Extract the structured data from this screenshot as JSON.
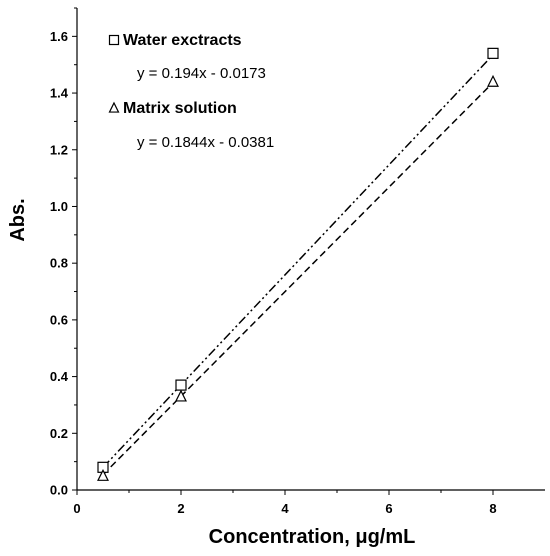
{
  "chart_data": {
    "type": "scatter",
    "xlabel": "Concentration, μg/mL",
    "ylabel": "Abs.",
    "xlim": [
      0,
      9
    ],
    "ylim": [
      0,
      1.7
    ],
    "x_ticks": [
      "0",
      "2",
      "4",
      "6",
      "8"
    ],
    "y_ticks": [
      "0.0",
      "0.2",
      "0.4",
      "0.6",
      "0.8",
      "1.0",
      "1.2",
      "1.4",
      "1.6"
    ],
    "grid": false,
    "legend_position": "top-left",
    "series": [
      {
        "name": "Water exctracts",
        "marker": "square",
        "x": [
          0.5,
          2,
          8
        ],
        "y": [
          0.08,
          0.37,
          1.54
        ],
        "trendline": {
          "equation": "y = 0.194x - 0.0173",
          "slope": 0.194,
          "intercept": -0.0173,
          "style": "dash-dot-dot"
        }
      },
      {
        "name": "Matrix solution",
        "marker": "triangle",
        "x": [
          0.5,
          2,
          8
        ],
        "y": [
          0.05,
          0.33,
          1.44
        ],
        "trendline": {
          "equation": "y = 0.1844x - 0.0381",
          "slope": 0.1844,
          "intercept": -0.0381,
          "style": "dashed"
        }
      }
    ]
  }
}
